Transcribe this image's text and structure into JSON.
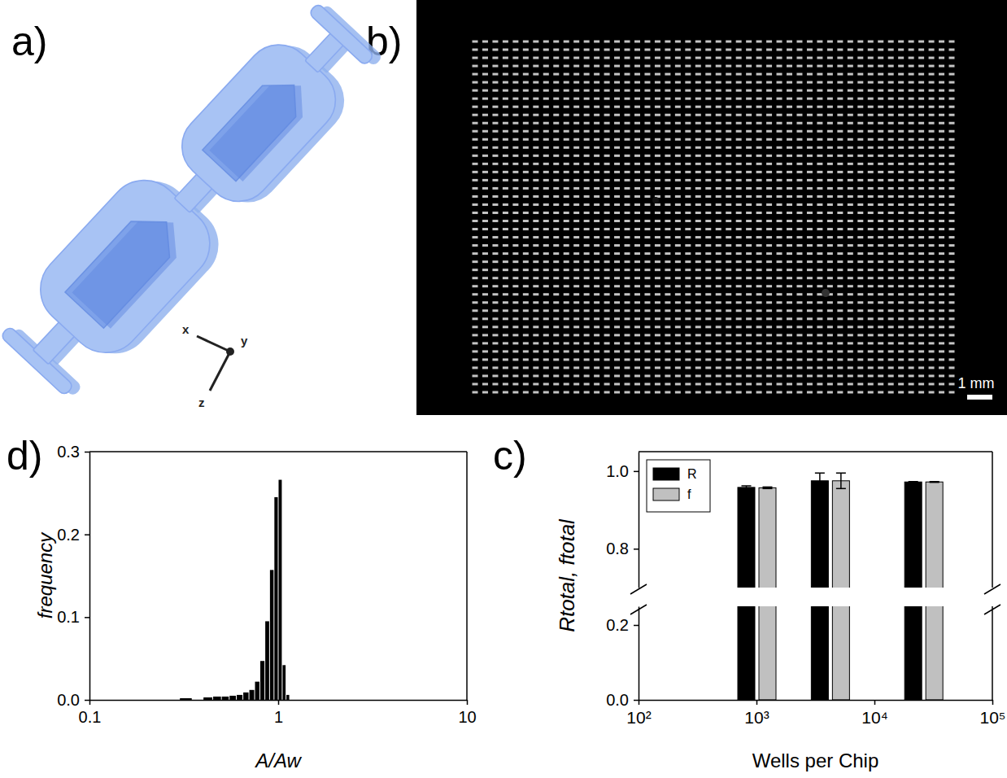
{
  "figure": {
    "panel_letters": [
      "a)",
      "b)",
      "c)",
      "d)"
    ],
    "axis_triad": [
      "x",
      "y",
      "z"
    ],
    "scale_bar": "1 mm"
  },
  "chart_data": [
    {
      "type": "bar",
      "xlabel": "Wells per Chip",
      "ylabel": "Rtotal, ftotal",
      "x": [
        1000,
        4200,
        26000
      ],
      "xlim": [
        100,
        100000
      ],
      "xticks": [
        {
          "value": 100,
          "label": "10²"
        },
        {
          "value": 1000,
          "label": "10³"
        },
        {
          "value": 10000,
          "label": "10⁴"
        },
        {
          "value": 100000,
          "label": "10⁵"
        }
      ],
      "ylim": [
        0,
        1.05
      ],
      "y_break": [
        0.25,
        0.7
      ],
      "yticks": [
        {
          "value": 0,
          "label": "0.0"
        },
        0.2,
        0.8,
        {
          "value": 1,
          "label": "1.0"
        }
      ],
      "log": "x",
      "grid": false,
      "legend": "upper left",
      "series": [
        {
          "name": "R",
          "color": "#000000",
          "values": [
            0.958,
            0.975,
            0.972
          ],
          "errors": [
            0.004,
            0.02,
            0.001
          ]
        },
        {
          "name": "f",
          "color": "#c0c0c0",
          "values": [
            0.957,
            0.975,
            0.972
          ],
          "errors": [
            0.002,
            0.02,
            0.001
          ]
        }
      ]
    },
    {
      "type": "histogram",
      "xlabel": "A/Aw",
      "ylabel": "frequency",
      "bins": [
        0.3,
        0.35,
        0.4,
        0.45,
        0.5,
        0.55,
        0.6,
        0.65,
        0.7,
        0.75,
        0.8,
        0.85,
        0.9,
        0.95,
        1.0,
        1.05,
        1.1,
        1.15,
        1.2
      ],
      "values": [
        0.002,
        0,
        0.003,
        0.004,
        0.004,
        0.005,
        0.006,
        0.009,
        0.012,
        0.022,
        0.047,
        0.095,
        0.157,
        0.245,
        0.266,
        0.042,
        0.006,
        0
      ],
      "color": "#000000",
      "xlim": [
        0.1,
        10
      ],
      "xticks": [
        0.1,
        1,
        10
      ],
      "ylim": [
        0,
        0.3
      ],
      "yticks": [
        {
          "value": 0,
          "label": "0.0"
        },
        0.1,
        0.2,
        0.3
      ],
      "log": "x",
      "grid": false
    }
  ]
}
